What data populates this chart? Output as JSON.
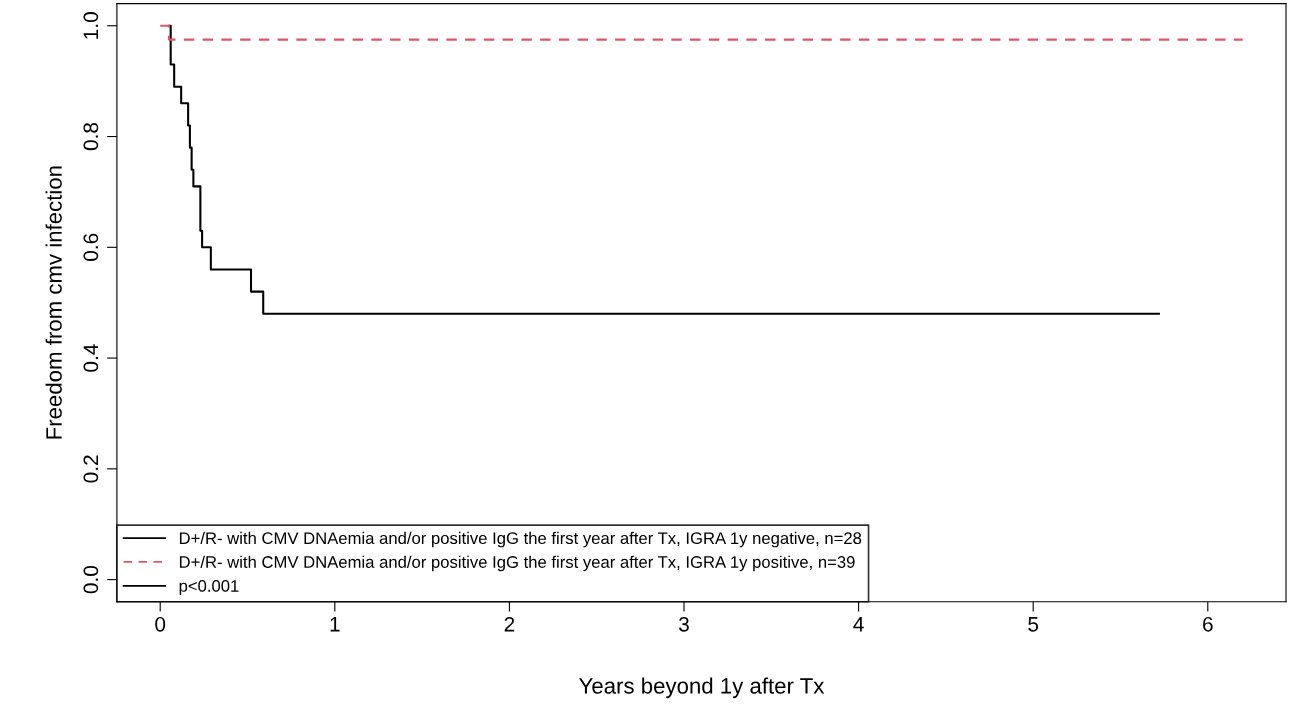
{
  "chart_data": {
    "type": "step",
    "xlabel": "Years beyond 1y after Tx",
    "ylabel": "Freedom from cmv infection",
    "xlim": [
      -0.248,
      6.448
    ],
    "ylim": [
      -0.04,
      1.04
    ],
    "xticks": [
      0,
      1,
      2,
      3,
      4,
      5,
      6
    ],
    "yticks": [
      {
        "value": 0,
        "label": "0.0"
      },
      0.2,
      0.4,
      0.6,
      0.8,
      {
        "value": 1,
        "label": "1.0"
      }
    ],
    "grid": false,
    "legend": "bottom left",
    "series": [
      {
        "name": "D+/R- with CMV DNAemia and/or positive IgG the first year after Tx, IGRA 1y negative, n=28",
        "color": "#000000",
        "line_style": "solid",
        "x": [
          0.05,
          0.06,
          0.08,
          0.12,
          0.16,
          0.17,
          0.18,
          0.19,
          0.23,
          0.24,
          0.29,
          0.52,
          0.59,
          5.72
        ],
        "values": [
          1.0,
          0.93,
          0.89,
          0.86,
          0.82,
          0.78,
          0.74,
          0.71,
          0.63,
          0.6,
          0.56,
          0.52,
          0.48,
          0.48
        ]
      },
      {
        "name": "D+/R- with CMV DNAemia and/or positive IgG the first year after Tx, IGRA 1y positive, n=39",
        "color": "#df536b",
        "line_style": "dashed",
        "x": [
          0.0,
          0.05,
          6.2
        ],
        "values": [
          1.0,
          0.975,
          0.975
        ]
      }
    ],
    "annotations": [
      "p<0.001"
    ]
  }
}
